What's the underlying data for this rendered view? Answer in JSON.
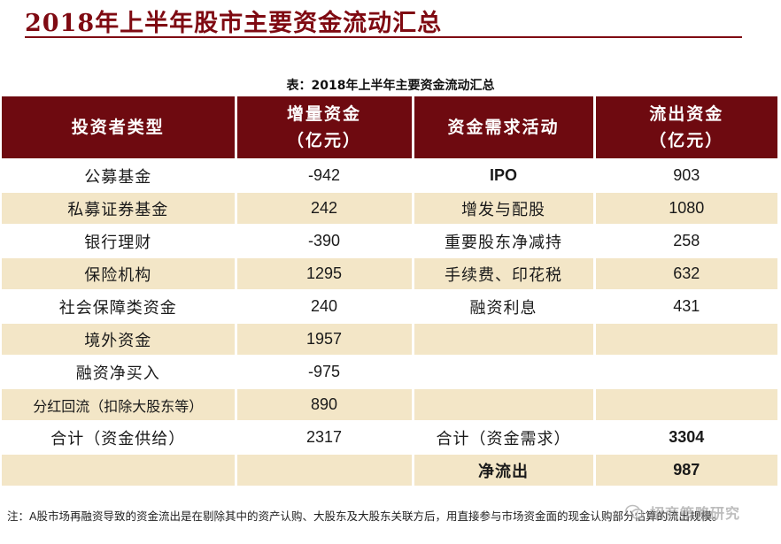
{
  "page": {
    "title": "2018年上半年股市主要资金流动汇总",
    "caption": "表：2018年上半年主要资金流动汇总",
    "note": "注：A股市场再融资导致的资金流出是在剔除其中的资产认购、大股东及大股东关联方后，用直接参与市场资金面的现金认购部分估算的流出规模。",
    "watermark": "招商策略研究"
  },
  "table": {
    "headers": [
      "投资者类型",
      "增量资金\n（亿元）",
      "资金需求活动",
      "流出资金\n（亿元）"
    ],
    "rows": [
      [
        "公募基金",
        "-942",
        "IPO",
        "903"
      ],
      [
        "私募证券基金",
        "242",
        "增发与配股",
        "1080"
      ],
      [
        "银行理财",
        "-390",
        "重要股东净减持",
        "258"
      ],
      [
        "保险机构",
        "1295",
        "手续费、印花税",
        "632"
      ],
      [
        "社会保障类资金",
        "240",
        "融资利息",
        "431"
      ],
      [
        "境外资金",
        "1957",
        "",
        ""
      ],
      [
        "融资净买入",
        "-975",
        "",
        ""
      ],
      [
        "分红回流（扣除大股东等）",
        "890",
        "",
        ""
      ],
      [
        "合计（资金供给）",
        "2317",
        "合计（资金需求）",
        "3304"
      ],
      [
        "",
        "",
        "净流出",
        "987"
      ]
    ]
  },
  "colors": {
    "header_bg": "#6e0a10",
    "title": "#7f0a12",
    "band": "#f3e6c7"
  }
}
